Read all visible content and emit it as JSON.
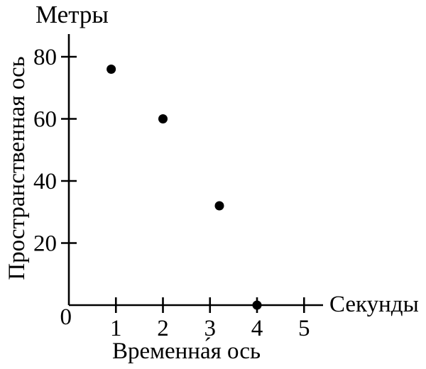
{
  "chart_data": {
    "type": "scatter",
    "title": "Метры",
    "ylabel": "Пространственная ось",
    "xlabel": "Временна́я ось",
    "x_unit": "Секунды",
    "origin_label": "0",
    "x_ticks": [
      1,
      2,
      3,
      4,
      5
    ],
    "y_ticks": [
      20,
      40,
      60,
      80
    ],
    "xlim": [
      0,
      5.4
    ],
    "ylim": [
      0,
      87
    ],
    "grid": false,
    "legend": null,
    "marker": "filled-circle",
    "marker_color": "#000000",
    "axis_color": "#000000",
    "points": [
      {
        "x": 0.9,
        "y": 76
      },
      {
        "x": 2.0,
        "y": 60
      },
      {
        "x": 3.2,
        "y": 32
      },
      {
        "x": 4.0,
        "y": 0
      }
    ]
  }
}
